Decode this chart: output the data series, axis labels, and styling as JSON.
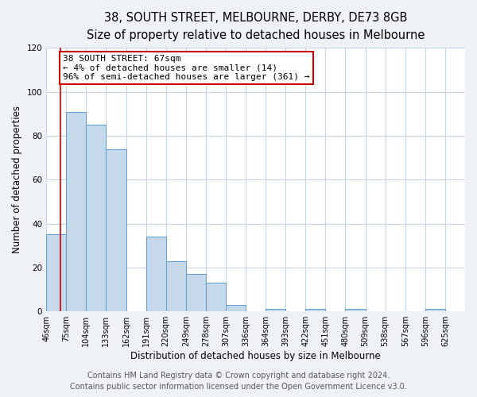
{
  "title": "38, SOUTH STREET, MELBOURNE, DERBY, DE73 8GB",
  "subtitle": "Size of property relative to detached houses in Melbourne",
  "xlabel": "Distribution of detached houses by size in Melbourne",
  "ylabel": "Number of detached properties",
  "bin_labels": [
    "46sqm",
    "75sqm",
    "104sqm",
    "133sqm",
    "162sqm",
    "191sqm",
    "220sqm",
    "249sqm",
    "278sqm",
    "307sqm",
    "336sqm",
    "364sqm",
    "393sqm",
    "422sqm",
    "451sqm",
    "480sqm",
    "509sqm",
    "538sqm",
    "567sqm",
    "596sqm",
    "625sqm"
  ],
  "bar_heights": [
    35,
    91,
    85,
    74,
    0,
    34,
    23,
    17,
    13,
    3,
    0,
    1,
    0,
    1,
    0,
    1,
    0,
    0,
    0,
    1,
    0
  ],
  "bar_color": "#c5d9eb",
  "bar_edge_color": "#5b9bd5",
  "annotation_title": "38 SOUTH STREET: 67sqm",
  "annotation_line1": "← 4% of detached houses are smaller (14)",
  "annotation_line2": "96% of semi-detached houses are larger (361) →",
  "annotation_box_color": "#ffffff",
  "annotation_box_edge_color": "#cc0000",
  "property_vline_color": "#cc0000",
  "ylim": [
    0,
    120
  ],
  "yticks": [
    0,
    20,
    40,
    60,
    80,
    100,
    120
  ],
  "footer_line1": "Contains HM Land Registry data © Crown copyright and database right 2024.",
  "footer_line2": "Contains public sector information licensed under the Open Government Licence v3.0.",
  "background_color": "#eef2f7",
  "plot_background_color": "#ffffff",
  "grid_color": "#c5d5e5",
  "title_fontsize": 10.5,
  "subtitle_fontsize": 9.5,
  "axis_label_fontsize": 8.5,
  "tick_fontsize": 7,
  "annotation_fontsize": 8,
  "footer_fontsize": 7
}
